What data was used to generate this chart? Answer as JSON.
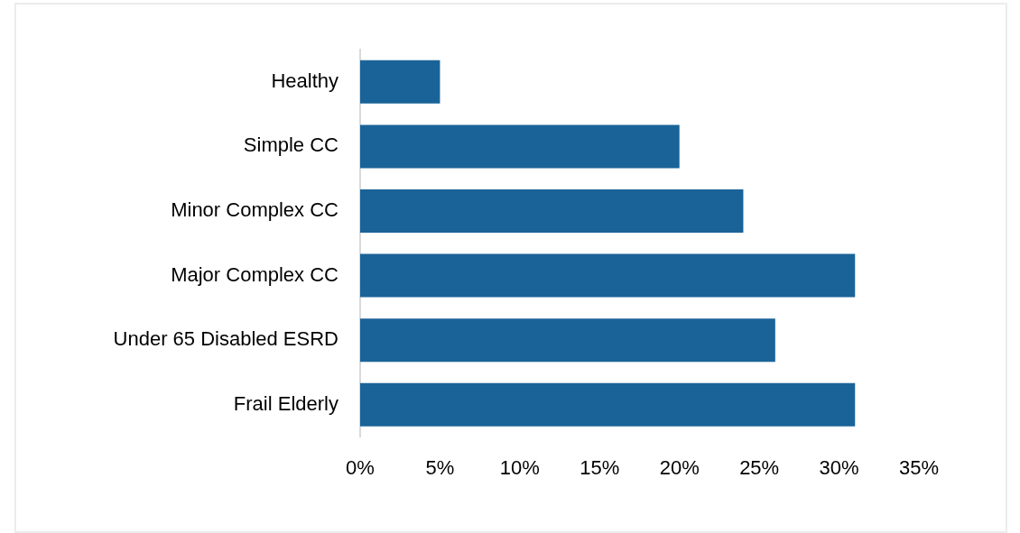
{
  "chart_data": {
    "type": "bar",
    "orientation": "horizontal",
    "categories": [
      "Healthy",
      "Simple CC",
      "Minor Complex CC",
      "Major Complex CC",
      "Under 65 Disabled ESRD",
      "Frail Elderly"
    ],
    "values": [
      5,
      20,
      24,
      31,
      26,
      31
    ],
    "color": "#1a6398",
    "xlim": [
      0,
      35
    ],
    "xticks": [
      {
        "value": 0,
        "label": "0%"
      },
      {
        "value": 5,
        "label": "5%"
      },
      {
        "value": 10,
        "label": "10%"
      },
      {
        "value": 15,
        "label": "15%"
      },
      {
        "value": 20,
        "label": "20%"
      },
      {
        "value": 25,
        "label": "25%"
      },
      {
        "value": 30,
        "label": "30%"
      },
      {
        "value": 35,
        "label": "35%"
      }
    ],
    "grid": false,
    "legend": false
  }
}
